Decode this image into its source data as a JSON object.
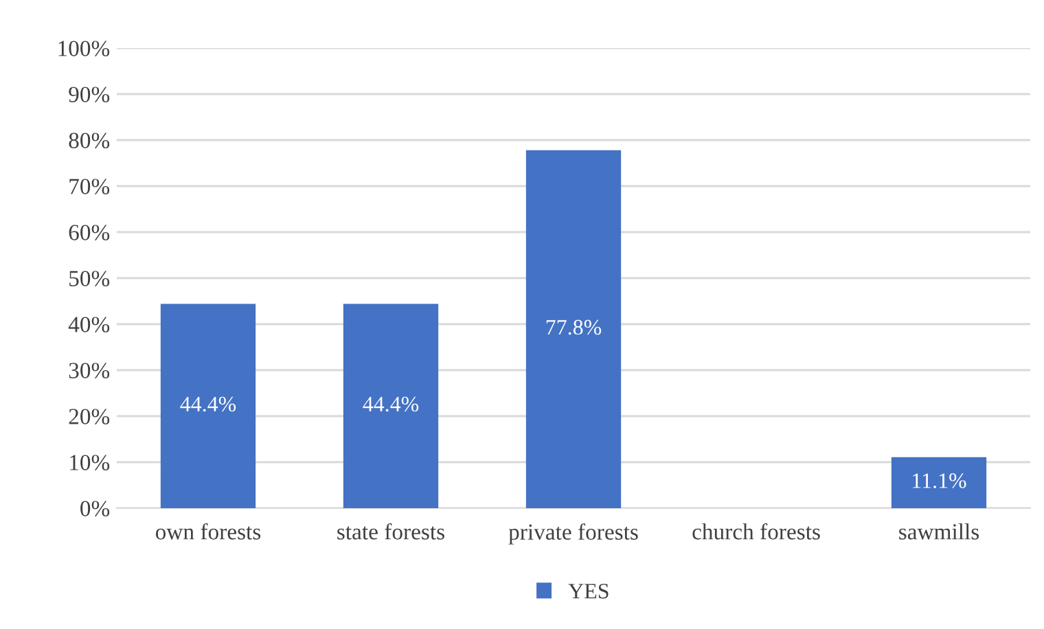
{
  "chart_data": {
    "type": "bar",
    "categories": [
      "own forests",
      "state forests",
      "private forests",
      "church forests",
      "sawmills"
    ],
    "series": [
      {
        "name": "YES",
        "color": "#4472c4",
        "values": [
          44.4,
          44.4,
          77.8,
          0,
          11.1
        ],
        "value_labels": [
          "44.4%",
          "44.4%",
          "77.8%",
          null,
          "11.1%"
        ]
      }
    ],
    "ylim": [
      0,
      100
    ],
    "yticks": [
      {
        "value": 0,
        "label": "0%"
      },
      {
        "value": 10,
        "label": "10%"
      },
      {
        "value": 20,
        "label": "20%"
      },
      {
        "value": 30,
        "label": "30%"
      },
      {
        "value": 40,
        "label": "40%"
      },
      {
        "value": 50,
        "label": "50%"
      },
      {
        "value": 60,
        "label": "60%"
      },
      {
        "value": 70,
        "label": "70%"
      },
      {
        "value": 80,
        "label": "80%"
      },
      {
        "value": 90,
        "label": "90%"
      },
      {
        "value": 100,
        "label": "100%"
      }
    ],
    "grid": "y",
    "legend": "bottom"
  }
}
